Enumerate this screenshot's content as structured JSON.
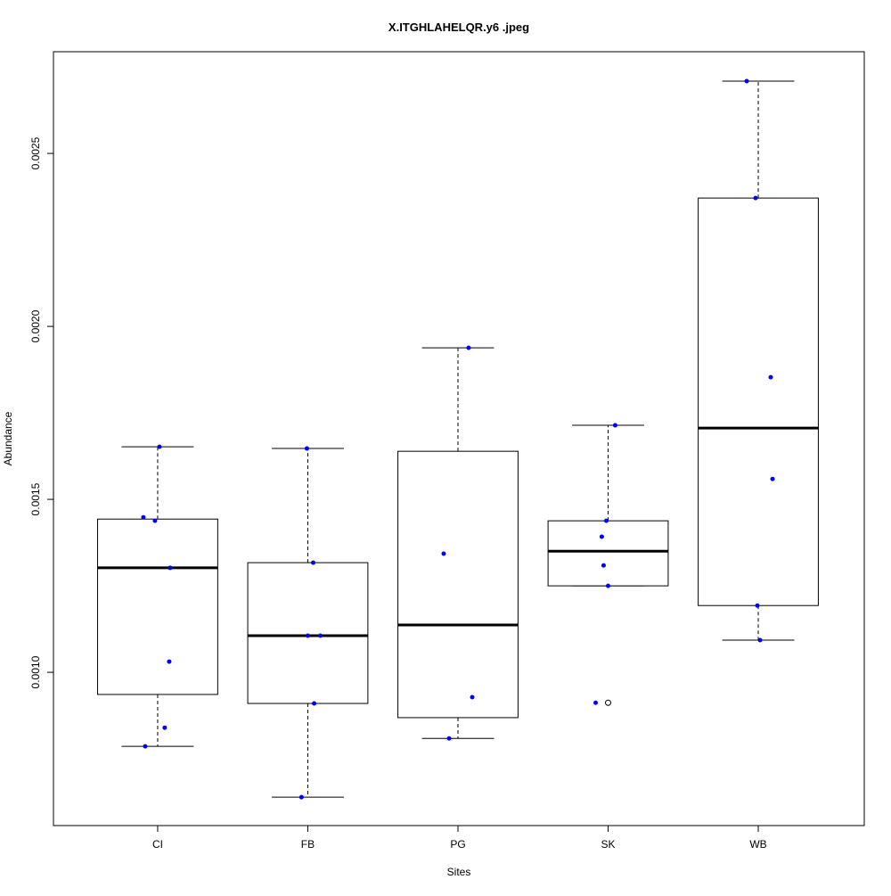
{
  "chart_data": {
    "type": "boxplot",
    "title": "X.ITGHLAHELQR.y6 .jpeg",
    "xlabel": "Sites",
    "ylabel": "Abundance",
    "ylim": [
      0.000557,
      0.002794
    ],
    "yticks": [
      0.001,
      0.0015,
      0.002,
      0.0025
    ],
    "ytick_labels": [
      "0.0010",
      "0.0015",
      "0.0020",
      "0.0025"
    ],
    "grid": false,
    "point_color": "#0000ff",
    "categories": [
      "CI",
      "FB",
      "PG",
      "SK",
      "WB"
    ],
    "boxes": [
      {
        "name": "CI",
        "whisker_low": 0.000786,
        "q1": 0.000936,
        "median": 0.001302,
        "q3": 0.001443,
        "whisker_high": 0.001652,
        "outliers": []
      },
      {
        "name": "FB",
        "whisker_low": 0.000639,
        "q1": 0.00091,
        "median": 0.001106,
        "q3": 0.001317,
        "whisker_high": 0.001647,
        "outliers": []
      },
      {
        "name": "PG",
        "whisker_low": 0.000809,
        "q1": 0.000869,
        "median": 0.001137,
        "q3": 0.001639,
        "whisker_high": 0.001938,
        "outliers": []
      },
      {
        "name": "SK",
        "whisker_low": 0.00125,
        "q1": 0.00125,
        "median": 0.00135,
        "q3": 0.001438,
        "whisker_high": 0.001714,
        "outliers": [
          0.000912
        ]
      },
      {
        "name": "WB",
        "whisker_low": 0.001093,
        "q1": 0.001193,
        "median": 0.001706,
        "q3": 0.002371,
        "whisker_high": 0.002709,
        "outliers": []
      }
    ],
    "points": [
      {
        "site": "CI",
        "jitter": -0.095,
        "value": 0.001448
      },
      {
        "site": "CI",
        "jitter": -0.018,
        "value": 0.001438
      },
      {
        "site": "CI",
        "jitter": 0.012,
        "value": 0.001652
      },
      {
        "site": "CI",
        "jitter": 0.083,
        "value": 0.001302
      },
      {
        "site": "CI",
        "jitter": 0.077,
        "value": 0.001031
      },
      {
        "site": "CI",
        "jitter": 0.047,
        "value": 0.00084
      },
      {
        "site": "CI",
        "jitter": -0.083,
        "value": 0.000786
      },
      {
        "site": "FB",
        "jitter": -0.006,
        "value": 0.001647
      },
      {
        "site": "FB",
        "jitter": 0.036,
        "value": 0.001317
      },
      {
        "site": "FB",
        "jitter": 0.0,
        "value": 0.001106
      },
      {
        "site": "FB",
        "jitter": 0.083,
        "value": 0.001106
      },
      {
        "site": "FB",
        "jitter": 0.042,
        "value": 0.00091
      },
      {
        "site": "FB",
        "jitter": -0.042,
        "value": 0.000639
      },
      {
        "site": "PG",
        "jitter": 0.071,
        "value": 0.001938
      },
      {
        "site": "PG",
        "jitter": -0.095,
        "value": 0.001343
      },
      {
        "site": "PG",
        "jitter": 0.095,
        "value": 0.000928
      },
      {
        "site": "PG",
        "jitter": -0.059,
        "value": 0.000809
      },
      {
        "site": "SK",
        "jitter": 0.047,
        "value": 0.001714
      },
      {
        "site": "SK",
        "jitter": -0.012,
        "value": 0.001438
      },
      {
        "site": "SK",
        "jitter": -0.042,
        "value": 0.001392
      },
      {
        "site": "SK",
        "jitter": -0.03,
        "value": 0.001309
      },
      {
        "site": "SK",
        "jitter": 0.0,
        "value": 0.00125
      },
      {
        "site": "SK",
        "jitter": -0.083,
        "value": 0.000912
      },
      {
        "site": "WB",
        "jitter": -0.077,
        "value": 0.002709
      },
      {
        "site": "WB",
        "jitter": -0.018,
        "value": 0.002371
      },
      {
        "site": "WB",
        "jitter": 0.083,
        "value": 0.001853
      },
      {
        "site": "WB",
        "jitter": 0.095,
        "value": 0.001559
      },
      {
        "site": "WB",
        "jitter": -0.006,
        "value": 0.001193
      },
      {
        "site": "WB",
        "jitter": 0.012,
        "value": 0.001093
      }
    ]
  }
}
